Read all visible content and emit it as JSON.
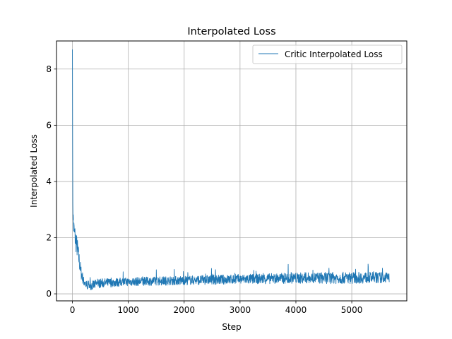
{
  "chart_data": {
    "type": "line",
    "title": "Interpolated Loss",
    "xlabel": "Step",
    "ylabel": "Interpolated Loss",
    "xlim": [
      -285,
      5985
    ],
    "ylim": [
      -0.25,
      9.0
    ],
    "xticks": [
      0,
      1000,
      2000,
      3000,
      4000,
      5000
    ],
    "yticks": [
      0,
      2,
      4,
      6,
      8
    ],
    "grid": true,
    "legend_position": "top-right",
    "series": [
      {
        "name": "Critic Interpolated Loss",
        "color": "#1f77b4",
        "x_start": 0,
        "x_end": 5670,
        "profile": [
          [
            0,
            8.7
          ],
          [
            3,
            5.5
          ],
          [
            8,
            3.2
          ],
          [
            15,
            2.6
          ],
          [
            30,
            2.2
          ],
          [
            60,
            1.9
          ],
          [
            90,
            1.6
          ],
          [
            120,
            1.2
          ],
          [
            150,
            0.8
          ],
          [
            200,
            0.45
          ],
          [
            250,
            0.32
          ],
          [
            350,
            0.3
          ],
          [
            500,
            0.38
          ],
          [
            1000,
            0.43
          ],
          [
            2000,
            0.48
          ],
          [
            3000,
            0.52
          ],
          [
            4000,
            0.56
          ],
          [
            5000,
            0.57
          ],
          [
            5670,
            0.58
          ]
        ],
        "noise_amplitude": [
          [
            0,
            1.0
          ],
          [
            100,
            0.7
          ],
          [
            200,
            0.35
          ],
          [
            1000,
            0.3
          ],
          [
            3000,
            0.35
          ],
          [
            4800,
            0.42
          ],
          [
            5670,
            0.38
          ]
        ],
        "ymin_observed": 0.1,
        "ymax_observed": 8.7,
        "sample_count": 1500
      }
    ]
  }
}
